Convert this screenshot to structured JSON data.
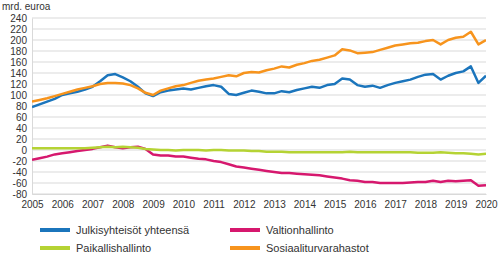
{
  "chart_data": {
    "type": "line",
    "y_label": "mrd. euroa",
    "categories": [
      "2005",
      null,
      null,
      null,
      "2006",
      null,
      null,
      null,
      "2007",
      null,
      null,
      null,
      "2008",
      null,
      null,
      null,
      "2009",
      null,
      null,
      null,
      "2010",
      null,
      null,
      null,
      "2011",
      null,
      null,
      null,
      "2012",
      null,
      null,
      null,
      "2013",
      null,
      null,
      null,
      "2014",
      null,
      null,
      null,
      "2015",
      null,
      null,
      null,
      "2016",
      null,
      null,
      null,
      "2017",
      null,
      null,
      null,
      "2018",
      null,
      null,
      null,
      "2019",
      null,
      null,
      null,
      "2020"
    ],
    "series": [
      {
        "name": "Julkisyhteisöt yhteensä",
        "color": "#1b75bc",
        "values": [
          78,
          83,
          88,
          93,
          100,
          103,
          106,
          110,
          115,
          125,
          136,
          138,
          132,
          125,
          115,
          103,
          98,
          105,
          108,
          110,
          112,
          110,
          113,
          116,
          118,
          115,
          102,
          100,
          104,
          108,
          106,
          103,
          103,
          107,
          105,
          109,
          112,
          115,
          113,
          118,
          120,
          130,
          128,
          118,
          115,
          117,
          113,
          118,
          122,
          125,
          128,
          133,
          137,
          138,
          128,
          135,
          140,
          143,
          152,
          122,
          135
        ]
      },
      {
        "name": "Valtionhallinto",
        "color": "#d6186e",
        "values": [
          -18,
          -15,
          -12,
          -8,
          -6,
          -4,
          -2,
          0,
          2,
          5,
          8,
          5,
          3,
          5,
          6,
          2,
          -8,
          -10,
          -10,
          -12,
          -12,
          -14,
          -16,
          -17,
          -20,
          -22,
          -26,
          -30,
          -32,
          -34,
          -36,
          -38,
          -40,
          -42,
          -42,
          -43,
          -44,
          -45,
          -46,
          -48,
          -50,
          -52,
          -55,
          -56,
          -58,
          -58,
          -60,
          -60,
          -60,
          -60,
          -59,
          -58,
          -58,
          -56,
          -58,
          -56,
          -57,
          -56,
          -55,
          -65,
          -64
        ]
      },
      {
        "name": "Paikallishallinto",
        "color": "#b5d334",
        "values": [
          3,
          3,
          3,
          3,
          3,
          3,
          3,
          3,
          4,
          5,
          6,
          5,
          6,
          5,
          4,
          2,
          1,
          0,
          0,
          -1,
          0,
          0,
          0,
          -1,
          0,
          0,
          -1,
          -1,
          -1,
          -2,
          -2,
          -3,
          -3,
          -3,
          -4,
          -4,
          -4,
          -4,
          -4,
          -4,
          -4,
          -4,
          -3,
          -4,
          -4,
          -4,
          -4,
          -4,
          -4,
          -4,
          -4,
          -5,
          -5,
          -5,
          -4,
          -5,
          -6,
          -6,
          -7,
          -8,
          -7
        ]
      },
      {
        "name": "Sosiaaliturvarahastot",
        "color": "#f7941d",
        "values": [
          88,
          91,
          94,
          98,
          102,
          106,
          110,
          113,
          116,
          120,
          122,
          122,
          121,
          118,
          112,
          104,
          100,
          108,
          112,
          116,
          118,
          122,
          126,
          128,
          130,
          133,
          136,
          134,
          140,
          142,
          141,
          145,
          148,
          152,
          150,
          155,
          158,
          162,
          164,
          168,
          172,
          183,
          181,
          176,
          177,
          178,
          182,
          186,
          190,
          192,
          194,
          195,
          198,
          200,
          192,
          200,
          204,
          206,
          215,
          192,
          200
        ]
      }
    ],
    "ylim": [
      -80,
      240
    ],
    "yticks": [
      -80,
      -60,
      -40,
      -20,
      0,
      20,
      40,
      60,
      80,
      100,
      120,
      140,
      160,
      180,
      200,
      220,
      240
    ],
    "grid": true,
    "legend": "bottom"
  }
}
